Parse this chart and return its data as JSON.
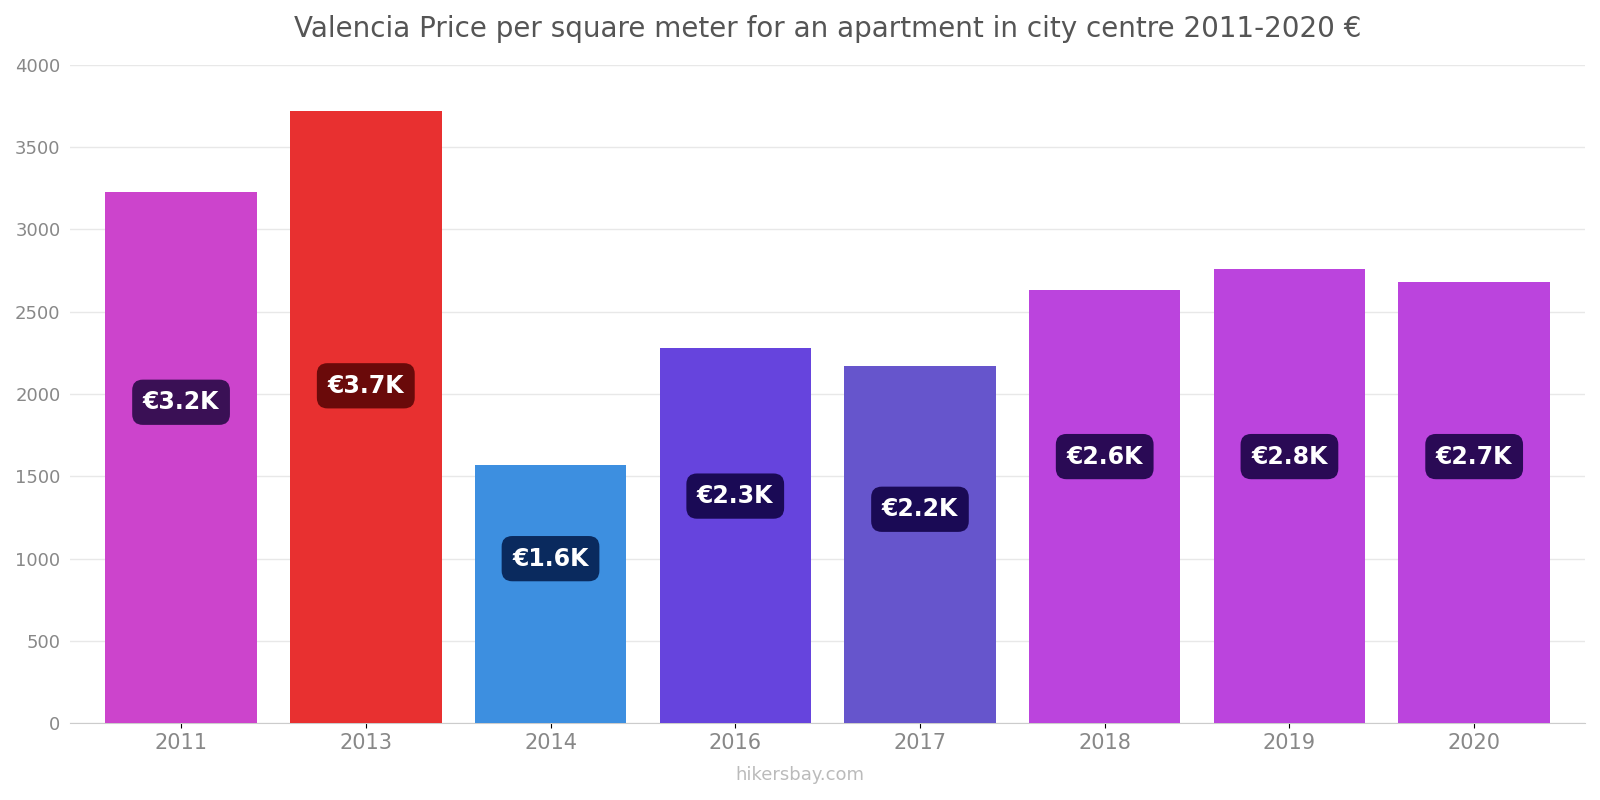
{
  "title": "Valencia Price per square meter for an apartment in city centre 2011-2020 €",
  "years": [
    2011,
    2013,
    2014,
    2016,
    2017,
    2018,
    2019,
    2020
  ],
  "values": [
    3230,
    3720,
    1570,
    2280,
    2170,
    2630,
    2760,
    2680
  ],
  "bar_colors": [
    "#cc44cc",
    "#e83030",
    "#3d8fe0",
    "#6644dd",
    "#6655cc",
    "#bb44dd",
    "#bb44dd",
    "#bb44dd"
  ],
  "label_texts": [
    "€3.2K",
    "€3.7K",
    "€1.6K",
    "€2.3K",
    "€2.2K",
    "€2.6K",
    "€2.8K",
    "€2.7K"
  ],
  "label_bg_colors": [
    "#3a1055",
    "#6a0a0a",
    "#0a2a5e",
    "#1a0a55",
    "#1a0a55",
    "#2a0a55",
    "#2a0a55",
    "#2a0a55"
  ],
  "ylim": [
    0,
    4000
  ],
  "yticks": [
    0,
    500,
    1000,
    1500,
    2000,
    2500,
    3000,
    3500,
    4000
  ],
  "background_color": "#ffffff",
  "watermark": "hikersbay.com",
  "bar_width": 0.82,
  "label_y_abs": [
    1950,
    2050,
    1000,
    1380,
    1300,
    1620,
    1620,
    1620
  ]
}
